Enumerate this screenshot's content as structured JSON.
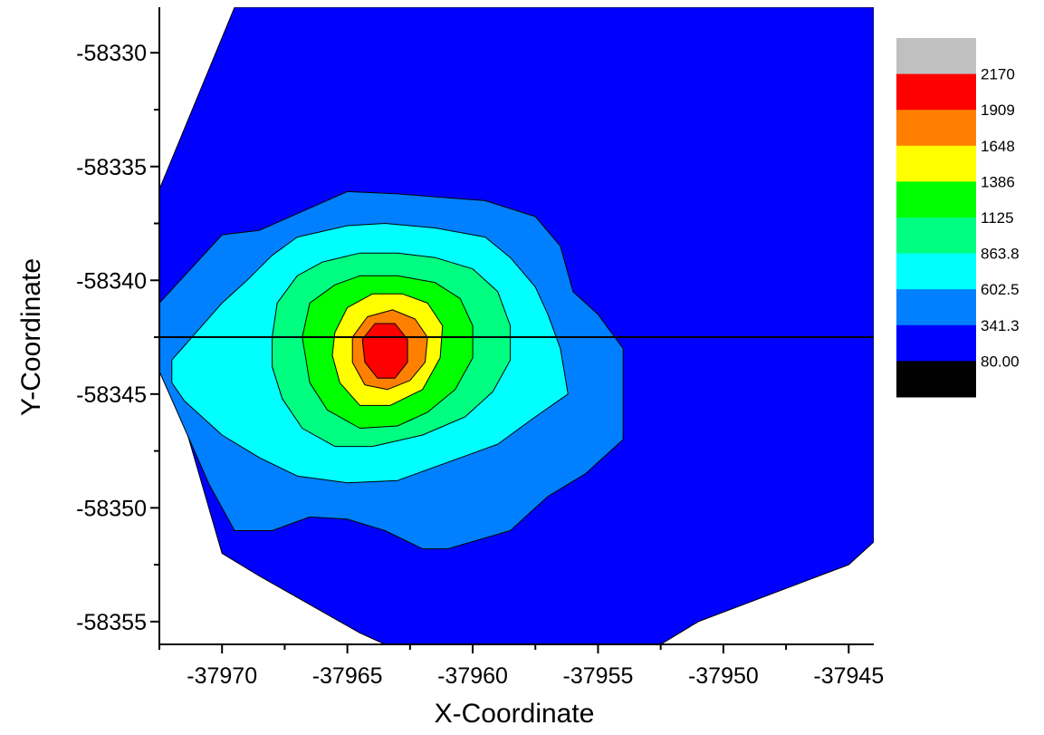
{
  "chart_data": {
    "type": "contour",
    "xlabel": "X-Coordinate",
    "ylabel": "Y-Coordinate",
    "xlim": [
      -37972.5,
      -37944
    ],
    "ylim": [
      -58356,
      -58328
    ],
    "x_ticks": [
      {
        "value": -37970,
        "label": "-37970"
      },
      {
        "value": -37965,
        "label": "-37965"
      },
      {
        "value": -37960,
        "label": "-37960"
      },
      {
        "value": -37955,
        "label": "-37955"
      },
      {
        "value": -37950,
        "label": "-37950"
      },
      {
        "value": -37945,
        "label": "-37945"
      }
    ],
    "y_ticks": [
      {
        "value": -58330,
        "label": "-58330"
      },
      {
        "value": -58335,
        "label": "-58335"
      },
      {
        "value": -58340,
        "label": "-58340"
      },
      {
        "value": -58345,
        "label": "-58345"
      },
      {
        "value": -58350,
        "label": "-58350"
      },
      {
        "value": -58355,
        "label": "-58355"
      }
    ],
    "reference_line": {
      "orientation": "horizontal",
      "y": -58342.5
    },
    "legend": {
      "placement": "right",
      "levels": [
        "2170",
        "1909",
        "1648",
        "1386",
        "1125",
        "863.8",
        "602.5",
        "341.3",
        "80.00"
      ],
      "colors": [
        "#c0c0c0",
        "#ff0000",
        "#ff8000",
        "#ffff00",
        "#00ff00",
        "#00ff80",
        "#00ffff",
        "#0080ff",
        "#0000ff",
        "#000000"
      ]
    },
    "contour_regions": [
      {
        "level": "80.00 - 341.3",
        "color": "#0000ff",
        "points": [
          [
            -37969.5,
            -58328
          ],
          [
            -37944,
            -58328
          ],
          [
            -37944,
            -58351.5
          ],
          [
            -37945,
            -58352.5
          ],
          [
            -37951,
            -58355
          ],
          [
            -37952.5,
            -58356
          ],
          [
            -37963.5,
            -58356
          ],
          [
            -37964.5,
            -58355.5
          ],
          [
            -37968.5,
            -58353
          ],
          [
            -37970,
            -58352
          ],
          [
            -37972.5,
            -58342.5
          ],
          [
            -37972.5,
            -58336
          ]
        ]
      },
      {
        "level": "341.3 - 602.5",
        "color": "#0080ff",
        "points": [
          [
            -37972.5,
            -58341
          ],
          [
            -37970,
            -58338
          ],
          [
            -37968.5,
            -58337.8
          ],
          [
            -37965,
            -58336.1
          ],
          [
            -37963,
            -58336.2
          ],
          [
            -37959.5,
            -58336.5
          ],
          [
            -37957.5,
            -58337.2
          ],
          [
            -37956.5,
            -58338.5
          ],
          [
            -37956,
            -58340.5
          ],
          [
            -37955,
            -58341.5
          ],
          [
            -37954,
            -58343
          ],
          [
            -37954,
            -58347
          ],
          [
            -37955.5,
            -58348.5
          ],
          [
            -37957,
            -58349.5
          ],
          [
            -37958.5,
            -58351
          ],
          [
            -37961,
            -58351.8
          ],
          [
            -37962,
            -58351.8
          ],
          [
            -37963.5,
            -58351
          ],
          [
            -37965,
            -58350.5
          ],
          [
            -37966.5,
            -58350.4
          ],
          [
            -37968,
            -58351
          ],
          [
            -37969.5,
            -58351
          ],
          [
            -37970.5,
            -58349
          ],
          [
            -37972.5,
            -58344
          ]
        ]
      },
      {
        "level": "602.5 - 863.8",
        "color": "#00ffff",
        "points": [
          [
            -37972,
            -58343.5
          ],
          [
            -37971.2,
            -58342.5
          ],
          [
            -37970,
            -58341
          ],
          [
            -37969,
            -58340
          ],
          [
            -37968,
            -58338.9
          ],
          [
            -37967,
            -58338.1
          ],
          [
            -37965,
            -58337.6
          ],
          [
            -37963.5,
            -58337.5
          ],
          [
            -37961.5,
            -58337.7
          ],
          [
            -37959.5,
            -58338.1
          ],
          [
            -37958.5,
            -58339
          ],
          [
            -37957.5,
            -58340.3
          ],
          [
            -37957,
            -58341.5
          ],
          [
            -37956.5,
            -58343
          ],
          [
            -37956.2,
            -58345
          ],
          [
            -37957.5,
            -58346
          ],
          [
            -37959,
            -58347.2
          ],
          [
            -37961.5,
            -58348.2
          ],
          [
            -37963,
            -58348.8
          ],
          [
            -37965,
            -58348.9
          ],
          [
            -37967,
            -58348.6
          ],
          [
            -37968.5,
            -58347.8
          ],
          [
            -37970,
            -58346.8
          ],
          [
            -37971.5,
            -58345.3
          ],
          [
            -37972,
            -58344.5
          ]
        ]
      },
      {
        "level": "863.8 - 1125",
        "color": "#00ff80",
        "points": [
          [
            -37968,
            -58342.5
          ],
          [
            -37967.8,
            -58341
          ],
          [
            -37967,
            -58339.8
          ],
          [
            -37966,
            -58339.2
          ],
          [
            -37964.5,
            -58338.8
          ],
          [
            -37963,
            -58338.8
          ],
          [
            -37961.5,
            -58339
          ],
          [
            -37960,
            -58339.5
          ],
          [
            -37959,
            -58340.5
          ],
          [
            -37958.5,
            -58342
          ],
          [
            -37958.5,
            -58343.5
          ],
          [
            -37959.2,
            -58344.9
          ],
          [
            -37960.3,
            -58346
          ],
          [
            -37962,
            -58346.8
          ],
          [
            -37964,
            -58347.3
          ],
          [
            -37965.5,
            -58347.3
          ],
          [
            -37966.8,
            -58346.5
          ],
          [
            -37967.6,
            -58345.2
          ],
          [
            -37968,
            -58343.8
          ]
        ]
      },
      {
        "level": "1125 - 1386",
        "color": "#00ff00",
        "points": [
          [
            -37966.8,
            -58342.5
          ],
          [
            -37966.5,
            -58341
          ],
          [
            -37965.5,
            -58340.2
          ],
          [
            -37964.5,
            -58339.8
          ],
          [
            -37963,
            -58339.8
          ],
          [
            -37961.5,
            -58340.1
          ],
          [
            -37960.5,
            -58340.8
          ],
          [
            -37960,
            -58342
          ],
          [
            -37960,
            -58343.4
          ],
          [
            -37960.7,
            -58344.8
          ],
          [
            -37961.8,
            -58345.8
          ],
          [
            -37963,
            -58346.4
          ],
          [
            -37964.5,
            -58346.5
          ],
          [
            -37965.8,
            -58345.7
          ],
          [
            -37966.5,
            -58344.5
          ]
        ]
      },
      {
        "level": "1386 - 1648",
        "color": "#ffff00",
        "points": [
          [
            -37965.5,
            -58342.3
          ],
          [
            -37965,
            -58341.2
          ],
          [
            -37964,
            -58340.6
          ],
          [
            -37962.8,
            -58340.6
          ],
          [
            -37961.8,
            -58341
          ],
          [
            -37961.2,
            -58342
          ],
          [
            -37961.3,
            -58343.4
          ],
          [
            -37962,
            -58344.8
          ],
          [
            -37963.3,
            -58345.5
          ],
          [
            -37964.5,
            -58345.5
          ],
          [
            -37965.3,
            -58344.5
          ],
          [
            -37965.6,
            -58343.3
          ]
        ]
      },
      {
        "level": "1648 - 1909",
        "color": "#ff8000",
        "points": [
          [
            -37964.8,
            -58342.5
          ],
          [
            -37964.2,
            -58341.6
          ],
          [
            -37963.2,
            -58341.3
          ],
          [
            -37962.3,
            -58341.7
          ],
          [
            -37961.8,
            -58342.5
          ],
          [
            -37961.9,
            -58343.6
          ],
          [
            -37962.5,
            -58344.4
          ],
          [
            -37963.4,
            -58344.8
          ],
          [
            -37964.3,
            -58344.6
          ],
          [
            -37964.8,
            -58343.6
          ]
        ]
      },
      {
        "level": "1909 - 2170",
        "color": "#ff0000",
        "points": [
          [
            -37964.4,
            -58342.6
          ],
          [
            -37963.9,
            -58341.9
          ],
          [
            -37963.1,
            -58341.9
          ],
          [
            -37962.6,
            -58342.6
          ],
          [
            -37962.6,
            -58343.6
          ],
          [
            -37963.1,
            -58344.3
          ],
          [
            -37963.8,
            -58344.3
          ],
          [
            -37964.3,
            -58343.6
          ]
        ]
      }
    ]
  }
}
